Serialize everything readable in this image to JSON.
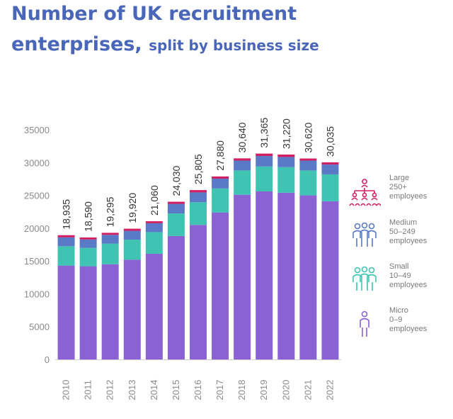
{
  "title": {
    "line1": "Number of UK recruitment",
    "line2_main": "enterprises,",
    "line2_sub": "split by business size"
  },
  "colors": {
    "micro": "#8b62d3",
    "small": "#3fc4b3",
    "medium": "#5a79c7",
    "large": "#d11f63",
    "title": "#4a66b8"
  },
  "legend": [
    {
      "key": "large",
      "icon": "org-chart-people-icon",
      "line1": "Large",
      "line2": "250+",
      "line3": "employees"
    },
    {
      "key": "medium",
      "icon": "group-people-icon",
      "line1": "Medium",
      "line2": "50–249",
      "line3": "employees"
    },
    {
      "key": "small",
      "icon": "group-people-icon",
      "line1": "Small",
      "line2": "10–49",
      "line3": "employees"
    },
    {
      "key": "micro",
      "icon": "single-person-icon",
      "line1": "Micro",
      "line2": "0–9",
      "line3": "employees"
    }
  ],
  "chart_data": {
    "type": "bar",
    "stacked": true,
    "categories": [
      "2010",
      "2011",
      "2012",
      "2013",
      "2014",
      "2015",
      "2016",
      "2017",
      "2018",
      "2019",
      "2020",
      "2021",
      "2022"
    ],
    "totals_labels": [
      "18,935",
      "18,590",
      "19,295",
      "19,920",
      "21,060",
      "24,030",
      "25,805",
      "27,880",
      "30,640",
      "31,365",
      "31,220",
      "30,620",
      "30,035"
    ],
    "series": [
      {
        "name": "Micro",
        "color": "#8b62d3",
        "values": [
          14300,
          14200,
          14500,
          15200,
          16100,
          18800,
          20500,
          22400,
          25100,
          25600,
          25400,
          25000,
          24100
        ]
      },
      {
        "name": "Small",
        "color": "#3fc4b3",
        "values": [
          2950,
          2800,
          3150,
          3050,
          3300,
          3450,
          3450,
          3650,
          3700,
          3800,
          3900,
          3800,
          4100
        ]
      },
      {
        "name": "Medium",
        "color": "#5a79c7",
        "values": [
          1350,
          1280,
          1330,
          1350,
          1350,
          1450,
          1500,
          1500,
          1500,
          1600,
          1550,
          1500,
          1500
        ]
      },
      {
        "name": "Large",
        "color": "#d11f63",
        "values": [
          335,
          310,
          315,
          320,
          310,
          330,
          355,
          330,
          340,
          365,
          370,
          320,
          335
        ]
      }
    ],
    "ylim": [
      0,
      35000
    ],
    "yticks": [
      0,
      5000,
      10000,
      15000,
      20000,
      25000,
      30000,
      35000
    ],
    "xlabel": "",
    "ylabel": "",
    "grid": false,
    "legend_position": "right"
  }
}
